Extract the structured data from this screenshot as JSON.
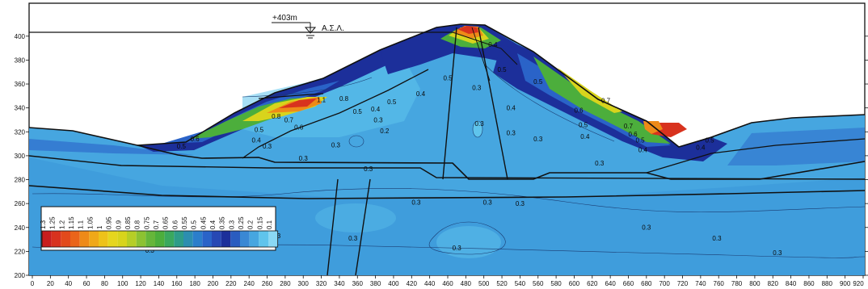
{
  "colors": {
    "deep": "#1c2f9a",
    "mid": "#2a63c8",
    "light": "#46a6e0",
    "pale": "#5fc4ec",
    "green": "#4cae3c",
    "yellow": "#d8d41c",
    "orange": "#ee8a18",
    "red": "#d8321e",
    "line": "#101010"
  },
  "water_level": {
    "label": "+403m",
    "symbol_label": "Α.Σ.Λ.",
    "y": 403
  },
  "axes": {
    "xlim": [
      0,
      920
    ],
    "ylim": [
      200,
      410
    ],
    "x_ticks": [
      0,
      20,
      40,
      60,
      80,
      100,
      120,
      140,
      160,
      180,
      200,
      220,
      240,
      260,
      280,
      300,
      320,
      340,
      360,
      380,
      400,
      420,
      440,
      460,
      480,
      500,
      520,
      540,
      560,
      580,
      600,
      620,
      640,
      660,
      680,
      700,
      720,
      740,
      760,
      780,
      800,
      820,
      840,
      860,
      880,
      900,
      920
    ],
    "y_ticks": [
      200,
      220,
      240,
      260,
      280,
      300,
      320,
      340,
      360,
      380,
      400
    ]
  },
  "legend": {
    "labels": [
      "1.3",
      "1.25",
      "1.2",
      "1.15",
      "1.1",
      "1.05",
      "1",
      "0.95",
      "0.9",
      "0.85",
      "0.8",
      "0.75",
      "0.7",
      "0.65",
      "0.6",
      "0.55",
      "0.5",
      "0.45",
      "0.4",
      "0.35",
      "0.3",
      "0.25",
      "0.2",
      "0.15",
      "0.1"
    ],
    "swatches": [
      "#c81e1e",
      "#d8321e",
      "#e24a1c",
      "#ea641a",
      "#ee8a18",
      "#f0a818",
      "#eec21a",
      "#e6d61e",
      "#d8d41c",
      "#b6ce26",
      "#8cc232",
      "#66b63a",
      "#4cae3c",
      "#3aa85e",
      "#2e9c88",
      "#2c8eb0",
      "#2b7ecb",
      "#2a63c8",
      "#2748b4",
      "#1c2f9a",
      "#2a5cc0",
      "#3a88d4",
      "#46a6e0",
      "#5fc4ec",
      "#8ad8f4"
    ]
  },
  "contour_labels": [
    {
      "t": "0.3",
      "x": 492,
      "y": 355
    },
    {
      "t": "0.4",
      "x": 510,
      "y": 391
    },
    {
      "t": "0.5",
      "x": 520,
      "y": 370
    },
    {
      "t": "0.5",
      "x": 460,
      "y": 363
    },
    {
      "t": "0.4",
      "x": 430,
      "y": 350
    },
    {
      "t": "0.5",
      "x": 398,
      "y": 343
    },
    {
      "t": "0.4",
      "x": 380,
      "y": 337
    },
    {
      "t": "0.3",
      "x": 383,
      "y": 328
    },
    {
      "t": "0.2",
      "x": 390,
      "y": 319
    },
    {
      "t": "0.3",
      "x": 336,
      "y": 307
    },
    {
      "t": "0.3",
      "x": 495,
      "y": 325
    },
    {
      "t": "0.3",
      "x": 530,
      "y": 317
    },
    {
      "t": "0.4",
      "x": 530,
      "y": 338
    },
    {
      "t": "0.5",
      "x": 560,
      "y": 360
    },
    {
      "t": "0.6",
      "x": 605,
      "y": 336
    },
    {
      "t": "0.7",
      "x": 635,
      "y": 344
    },
    {
      "t": "0.5",
      "x": 610,
      "y": 324
    },
    {
      "t": "0.4",
      "x": 612,
      "y": 314
    },
    {
      "t": "0.3",
      "x": 560,
      "y": 312
    },
    {
      "t": "1.1",
      "x": 320,
      "y": 345
    },
    {
      "t": "0.8",
      "x": 345,
      "y": 346
    },
    {
      "t": "0.5",
      "x": 360,
      "y": 335
    },
    {
      "t": "0.8",
      "x": 270,
      "y": 331
    },
    {
      "t": "0.7",
      "x": 284,
      "y": 328
    },
    {
      "t": "0.6",
      "x": 295,
      "y": 322
    },
    {
      "t": "0.5",
      "x": 251,
      "y": 320
    },
    {
      "t": "0.4",
      "x": 248,
      "y": 311
    },
    {
      "t": "0.3",
      "x": 260,
      "y": 306
    },
    {
      "t": "0.6",
      "x": 180,
      "y": 312
    },
    {
      "t": "0.5",
      "x": 165,
      "y": 306
    },
    {
      "t": "0.7",
      "x": 660,
      "y": 323
    },
    {
      "t": "0.6",
      "x": 665,
      "y": 316
    },
    {
      "t": "0.5",
      "x": 673,
      "y": 311
    },
    {
      "t": "0.4",
      "x": 676,
      "y": 303
    },
    {
      "t": "0.4",
      "x": 740,
      "y": 305
    },
    {
      "t": "0.5",
      "x": 750,
      "y": 311
    },
    {
      "t": "0.3",
      "x": 300,
      "y": 296
    },
    {
      "t": "0.3",
      "x": 372,
      "y": 287
    },
    {
      "t": "0.3",
      "x": 628,
      "y": 292
    },
    {
      "t": "0.3",
      "x": 425,
      "y": 259
    },
    {
      "t": "0.3",
      "x": 504,
      "y": 259
    },
    {
      "t": "0.3",
      "x": 540,
      "y": 258
    },
    {
      "t": "0.3",
      "x": 680,
      "y": 238
    },
    {
      "t": "0.3",
      "x": 270,
      "y": 231
    },
    {
      "t": "0.3",
      "x": 355,
      "y": 229
    },
    {
      "t": "0.3",
      "x": 470,
      "y": 221
    },
    {
      "t": "0.3",
      "x": 130,
      "y": 219
    },
    {
      "t": "0.3",
      "x": 758,
      "y": 229
    },
    {
      "t": "0.3",
      "x": 825,
      "y": 217
    }
  ]
}
